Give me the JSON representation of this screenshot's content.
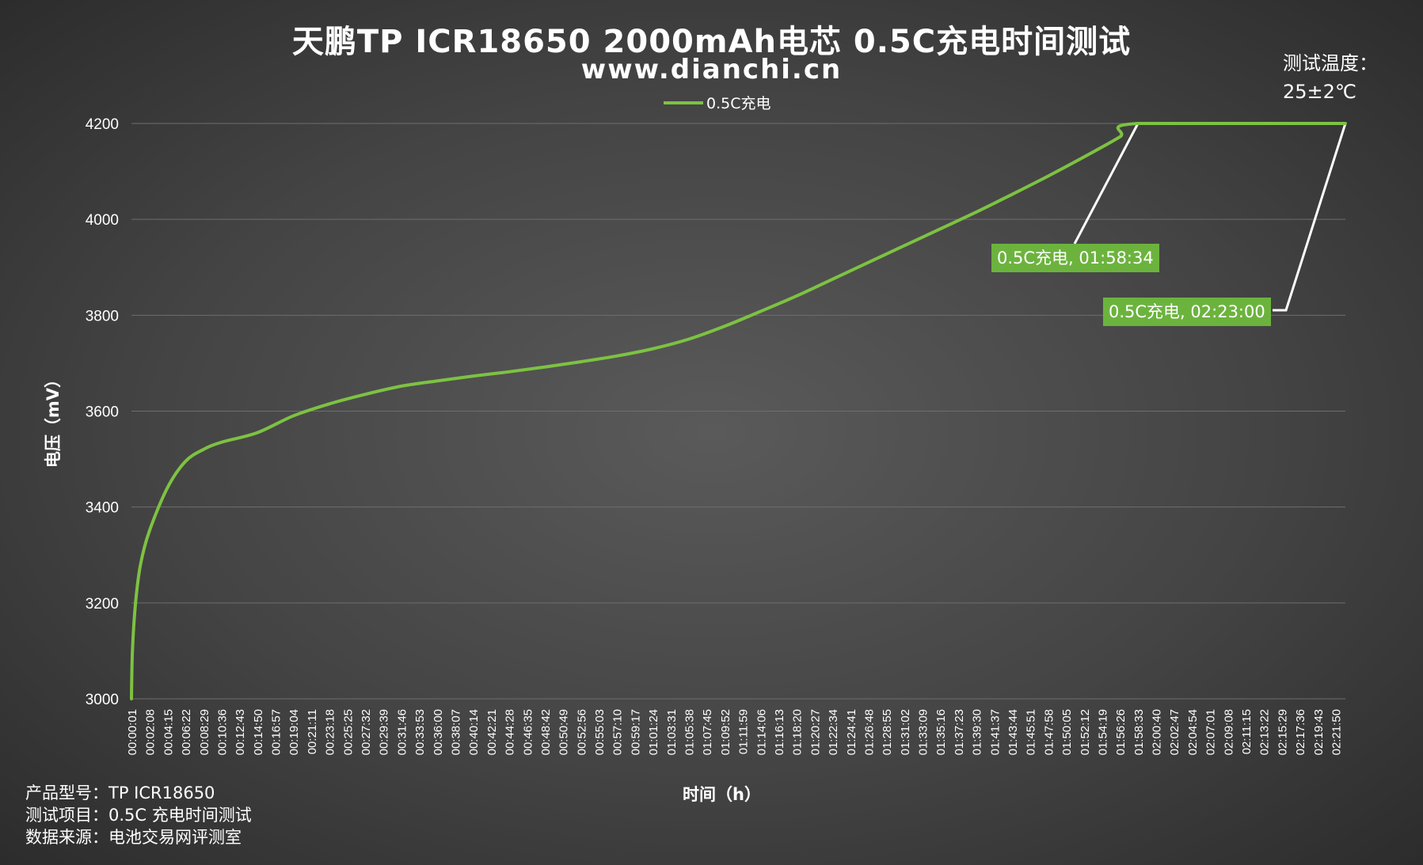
{
  "title": "天鹏TP ICR18650 2000mAh电芯 0.5C充电时间测试",
  "subtitle": "www.dianchi.cn",
  "temperature": {
    "label": "测试温度：",
    "value": "25±2℃"
  },
  "footer": {
    "rows": [
      "产品型号：TP ICR18650",
      "测试项目：0.5C 充电时间测试",
      "数据来源：电池交易网评测室"
    ]
  },
  "colors": {
    "series": "#7dc242",
    "callout_bg": "#6cb33e",
    "grid": "#6e6e6e",
    "text": "#ffffff"
  },
  "chart_data": {
    "type": "line",
    "title": "天鹏TP ICR18650 2000mAh电芯 0.5C充电时间测试",
    "subtitle": "www.dianchi.cn",
    "xlabel": "时间（h）",
    "ylabel": "电压（mV）",
    "ylim": [
      3000,
      4200
    ],
    "y_ticks": [
      3000,
      3200,
      3400,
      3600,
      3800,
      4000,
      4200
    ],
    "grid": "horizontal",
    "legend": "top-center",
    "x_ticks": [
      "00:00:01",
      "00:02:08",
      "00:04:15",
      "00:06:22",
      "00:08:29",
      "00:10:36",
      "00:12:43",
      "00:14:50",
      "00:16:57",
      "00:19:04",
      "00:21:11",
      "00:23:18",
      "00:25:25",
      "00:27:32",
      "00:29:39",
      "00:31:46",
      "00:33:53",
      "00:36:00",
      "00:38:07",
      "00:40:14",
      "00:42:21",
      "00:44:28",
      "00:46:35",
      "00:48:42",
      "00:50:49",
      "00:52:56",
      "00:55:03",
      "00:57:10",
      "00:59:17",
      "01:01:24",
      "01:03:31",
      "01:05:38",
      "01:07:45",
      "01:09:52",
      "01:11:59",
      "01:14:06",
      "01:16:13",
      "01:18:20",
      "01:20:27",
      "01:22:34",
      "01:24:41",
      "01:26:48",
      "01:28:55",
      "01:31:02",
      "01:33:09",
      "01:35:16",
      "01:37:23",
      "01:39:30",
      "01:41:37",
      "01:43:44",
      "01:45:51",
      "01:47:58",
      "01:50:05",
      "01:52:12",
      "01:54:19",
      "01:56:26",
      "01:58:33",
      "02:00:40",
      "02:02:47",
      "02:04:54",
      "02:07:01",
      "02:09:08",
      "02:11:15",
      "02:13:22",
      "02:15:29",
      "02:17:36",
      "02:19:43",
      "02:21:50"
    ],
    "series": [
      {
        "name": "0.5C充电",
        "points": [
          [
            "00:00:01",
            3000
          ],
          [
            "00:00:08",
            3100
          ],
          [
            "00:00:30",
            3200
          ],
          [
            "00:01:05",
            3280
          ],
          [
            "00:02:08",
            3350
          ],
          [
            "00:04:15",
            3440
          ],
          [
            "00:06:22",
            3495
          ],
          [
            "00:08:29",
            3520
          ],
          [
            "00:10:36",
            3535
          ],
          [
            "00:14:50",
            3555
          ],
          [
            "00:19:04",
            3590
          ],
          [
            "00:23:18",
            3615
          ],
          [
            "00:27:32",
            3635
          ],
          [
            "00:31:46",
            3652
          ],
          [
            "00:36:00",
            3663
          ],
          [
            "00:40:14",
            3673
          ],
          [
            "00:44:28",
            3682
          ],
          [
            "00:48:42",
            3692
          ],
          [
            "00:52:56",
            3703
          ],
          [
            "00:57:10",
            3715
          ],
          [
            "01:01:24",
            3730
          ],
          [
            "01:05:38",
            3750
          ],
          [
            "01:09:52",
            3777
          ],
          [
            "01:14:06",
            3808
          ],
          [
            "01:18:20",
            3840
          ],
          [
            "01:22:34",
            3875
          ],
          [
            "01:26:48",
            3910
          ],
          [
            "01:31:02",
            3945
          ],
          [
            "01:35:16",
            3980
          ],
          [
            "01:39:30",
            4015
          ],
          [
            "01:43:44",
            4052
          ],
          [
            "01:47:58",
            4090
          ],
          [
            "01:52:12",
            4130
          ],
          [
            "01:56:26",
            4172
          ],
          [
            "01:58:34",
            4200
          ],
          [
            "02:23:00",
            4200
          ]
        ]
      }
    ],
    "annotations": [
      {
        "text": "0.5C充电, 01:58:34",
        "x": "01:58:34",
        "y": 4200
      },
      {
        "text": "0.5C充电, 02:23:00",
        "x": "02:23:00",
        "y": 4200
      }
    ]
  }
}
